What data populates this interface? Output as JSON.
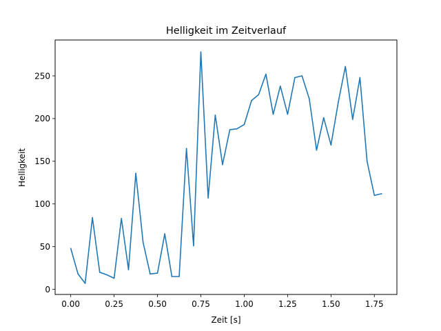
{
  "chart_data": {
    "type": "line",
    "title": "Helligkeit im Zeitverlauf",
    "xlabel": "Zeit [s]",
    "ylabel": "Helligkeit",
    "xlim": [
      -0.09,
      1.88
    ],
    "ylim": [
      -6,
      292
    ],
    "xticks": [
      0.0,
      0.25,
      0.5,
      0.75,
      1.0,
      1.25,
      1.5,
      1.75
    ],
    "xtick_labels": [
      "0.00",
      "0.25",
      "0.50",
      "0.75",
      "1.00",
      "1.25",
      "1.50",
      "1.75"
    ],
    "yticks": [
      0,
      50,
      100,
      150,
      200,
      250
    ],
    "ytick_labels": [
      "0",
      "50",
      "100",
      "150",
      "200",
      "250"
    ],
    "grid": false,
    "line_color": "#1f77b4",
    "series": [
      {
        "x": [
          0.0,
          0.042,
          0.083,
          0.125,
          0.167,
          0.208,
          0.25,
          0.292,
          0.333,
          0.375,
          0.417,
          0.458,
          0.5,
          0.542,
          0.583,
          0.625,
          0.667,
          0.708,
          0.75,
          0.792,
          0.833,
          0.875,
          0.917,
          0.958,
          1.0,
          1.042,
          1.083,
          1.125,
          1.167,
          1.208,
          1.25,
          1.292,
          1.333,
          1.375,
          1.417,
          1.458,
          1.5,
          1.542,
          1.583,
          1.625,
          1.667,
          1.708,
          1.75,
          1.792
        ],
        "y": [
          48,
          18,
          7,
          84,
          20,
          17,
          13,
          83,
          23,
          136,
          55,
          18,
          19,
          65,
          15,
          15,
          165,
          51,
          278,
          107,
          204,
          146,
          187,
          188,
          193,
          221,
          228,
          252,
          205,
          238,
          205,
          248,
          250,
          223,
          163,
          201,
          169,
          219,
          261,
          199,
          248,
          150,
          110,
          112
        ]
      }
    ]
  }
}
